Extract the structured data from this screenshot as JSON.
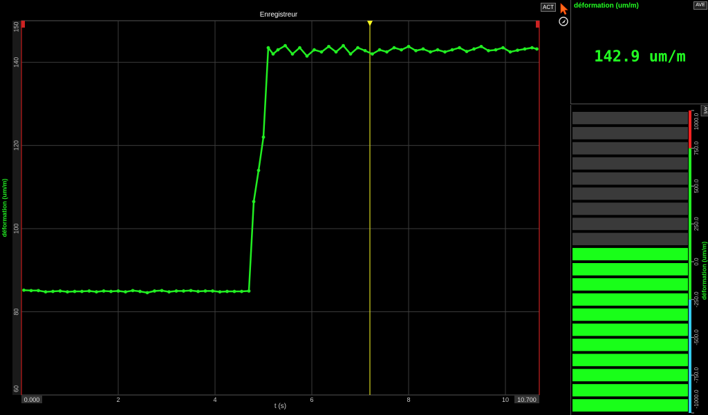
{
  "recorder": {
    "title": "Enregistreur",
    "act_label": "ACT",
    "x_start_label": "0.000",
    "x_end_label": "10.700"
  },
  "digital": {
    "label": "déformation (um/m)",
    "ave_label": "AVE",
    "value": "142.9 um/m"
  },
  "bargraph": {
    "ave_label": "AVE",
    "axis_label": "déformation (um/m)",
    "value": 142.9,
    "min": -1000,
    "max": 1000,
    "ticks": [
      "1000.0",
      "750.0",
      "500.0",
      "250.0",
      "0.0",
      "-250.0",
      "-500.0",
      "-750.0",
      "-1000.0"
    ],
    "tick_values": [
      1000,
      750,
      500,
      250,
      0,
      -250,
      -500,
      -750,
      -1000
    ],
    "segments": 20,
    "colors": {
      "filled": "#19ff19",
      "empty": "#3a3a3a",
      "alarm_high": "#ff2222",
      "normal": "#22ee22",
      "low": "#33ccee"
    }
  },
  "chart_data": {
    "type": "line",
    "title": "Enregistreur",
    "xlabel": "t (s)",
    "ylabel": "déformation (um/m)",
    "xlim": [
      0,
      10.7
    ],
    "ylim": [
      60,
      150
    ],
    "xticks": [
      2,
      4,
      6,
      8,
      10
    ],
    "yticks": [
      60,
      80,
      100,
      120,
      140,
      150
    ],
    "grid": true,
    "cursor_x": 7.2,
    "series": [
      {
        "color": "#22ee22",
        "x": [
          0.05,
          0.2,
          0.35,
          0.5,
          0.65,
          0.8,
          0.95,
          1.1,
          1.25,
          1.4,
          1.55,
          1.7,
          1.85,
          2.0,
          2.15,
          2.3,
          2.45,
          2.6,
          2.75,
          2.9,
          3.05,
          3.2,
          3.35,
          3.5,
          3.65,
          3.8,
          3.95,
          4.1,
          4.25,
          4.4,
          4.55,
          4.7,
          4.8,
          4.9,
          5.0,
          5.1,
          5.2,
          5.3,
          5.45,
          5.6,
          5.75,
          5.9,
          6.05,
          6.2,
          6.35,
          6.5,
          6.65,
          6.8,
          6.95,
          7.1,
          7.25,
          7.4,
          7.55,
          7.7,
          7.85,
          8.0,
          8.15,
          8.3,
          8.45,
          8.6,
          8.75,
          8.9,
          9.05,
          9.2,
          9.35,
          9.5,
          9.65,
          9.8,
          9.95,
          10.1,
          10.25,
          10.4,
          10.55,
          10.65
        ],
        "y": [
          85.2,
          85.1,
          85.1,
          84.8,
          84.9,
          85.0,
          84.8,
          84.9,
          84.9,
          85.0,
          84.8,
          85.0,
          84.9,
          85.0,
          84.8,
          85.1,
          84.9,
          84.6,
          85.0,
          85.1,
          84.8,
          85.0,
          85.0,
          85.1,
          84.9,
          85.0,
          85.0,
          84.8,
          84.9,
          84.9,
          84.9,
          85.0,
          106.5,
          114.0,
          122.0,
          143.5,
          142.0,
          143.0,
          144.0,
          142.0,
          143.5,
          141.5,
          143.0,
          142.5,
          143.8,
          142.5,
          144.0,
          142.0,
          143.5,
          142.8,
          142.0,
          143.0,
          142.5,
          143.5,
          143.0,
          143.8,
          142.8,
          143.2,
          142.5,
          143.0,
          142.5,
          143.0,
          143.5,
          142.6,
          143.2,
          143.8,
          142.8,
          143.0,
          143.5,
          142.5,
          142.9,
          143.2,
          143.5,
          143.2
        ]
      }
    ]
  }
}
